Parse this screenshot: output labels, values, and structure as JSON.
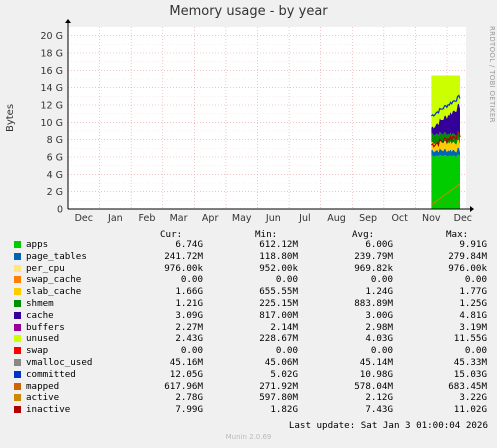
{
  "chart_data": {
    "type": "area",
    "title": "Memory usage - by year",
    "ylabel": "Bytes",
    "side_label": "RRDTOOL / TOBI OETIKER",
    "y_ticks": [
      "0",
      "2 G",
      "4 G",
      "6 G",
      "8 G",
      "10 G",
      "12 G",
      "14 G",
      "16 G",
      "18 G",
      "20 G"
    ],
    "ylim": [
      0,
      21
    ],
    "x_ticks": [
      "Dec",
      "Jan",
      "Feb",
      "Mar",
      "Apr",
      "May",
      "Jun",
      "Jul",
      "Aug",
      "Sep",
      "Oct",
      "Nov",
      "Dec"
    ],
    "grid": true,
    "series_bands": {
      "x_start_fraction": 0.913,
      "x_end_fraction": 0.985,
      "apps_level": 6.0,
      "unused_top": 15.4,
      "cache_top": 11.0,
      "committed_level": 10.5
    },
    "colors": {
      "apps": "#00cc00",
      "page_tables": "#0066b3",
      "per_cpu": "#ffe680",
      "swap_cache": "#ff8000",
      "slab_cache": "#ffcc00",
      "shmem": "#008f00",
      "cache": "#330099",
      "buffers": "#990099",
      "unused": "#ccff00",
      "swap": "#ff0000",
      "vmalloc_used": "#888888",
      "committed": "#0033cc",
      "mapped": "#cc6600",
      "active": "#cc8800",
      "inactive": "#b30000"
    }
  },
  "legend": {
    "headers": {
      "cur": "Cur:",
      "min": "Min:",
      "avg": "Avg:",
      "max": "Max:"
    },
    "rows": [
      {
        "name": "apps",
        "cur": "6.74G",
        "min": "612.12M",
        "avg": "6.00G",
        "max": "9.91G"
      },
      {
        "name": "page_tables",
        "cur": "241.72M",
        "min": "118.80M",
        "avg": "239.79M",
        "max": "279.84M"
      },
      {
        "name": "per_cpu",
        "cur": "976.00k",
        "min": "952.00k",
        "avg": "969.82k",
        "max": "976.00k"
      },
      {
        "name": "swap_cache",
        "cur": "0.00",
        "min": "0.00",
        "avg": "0.00",
        "max": "0.00"
      },
      {
        "name": "slab_cache",
        "cur": "1.66G",
        "min": "655.55M",
        "avg": "1.24G",
        "max": "1.77G"
      },
      {
        "name": "shmem",
        "cur": "1.21G",
        "min": "225.15M",
        "avg": "883.89M",
        "max": "1.25G"
      },
      {
        "name": "cache",
        "cur": "3.09G",
        "min": "817.00M",
        "avg": "3.00G",
        "max": "4.81G"
      },
      {
        "name": "buffers",
        "cur": "2.27M",
        "min": "2.14M",
        "avg": "2.98M",
        "max": "3.19M"
      },
      {
        "name": "unused",
        "cur": "2.43G",
        "min": "228.67M",
        "avg": "4.03G",
        "max": "11.55G"
      },
      {
        "name": "swap",
        "cur": "0.00",
        "min": "0.00",
        "avg": "0.00",
        "max": "0.00"
      },
      {
        "name": "vmalloc_used",
        "cur": "45.16M",
        "min": "45.06M",
        "avg": "45.14M",
        "max": "45.33M"
      },
      {
        "name": "committed",
        "cur": "12.05G",
        "min": "5.02G",
        "avg": "10.98G",
        "max": "15.03G"
      },
      {
        "name": "mapped",
        "cur": "617.96M",
        "min": "271.92M",
        "avg": "578.04M",
        "max": "683.45M"
      },
      {
        "name": "active",
        "cur": "2.78G",
        "min": "597.80M",
        "avg": "2.12G",
        "max": "3.22G"
      },
      {
        "name": "inactive",
        "cur": "7.99G",
        "min": "1.82G",
        "avg": "7.43G",
        "max": "11.02G"
      }
    ]
  },
  "footer": {
    "last_update": "Last update: Sat Jan  3 01:00:04 2026",
    "munin": "Munin 2.0.69"
  }
}
